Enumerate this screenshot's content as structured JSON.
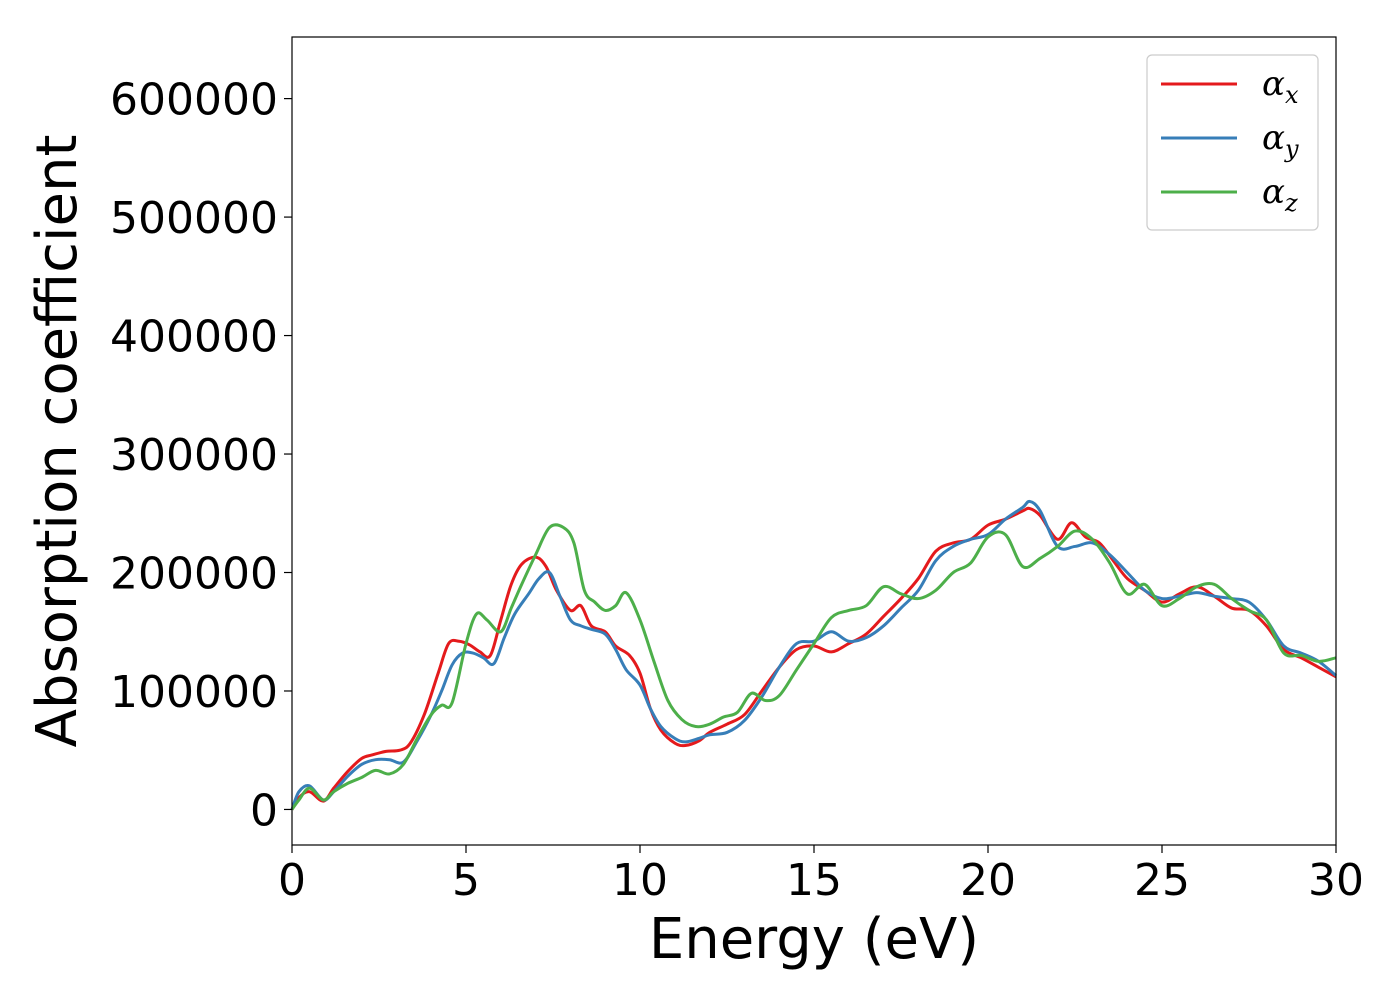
{
  "chart_data": {
    "type": "line",
    "title": "",
    "xlabel": "Energy (eV)",
    "ylabel": "Absorption coefficient",
    "xlim": [
      0,
      30
    ],
    "ylim": [
      -30000,
      652000
    ],
    "xticks": [
      0,
      5,
      10,
      15,
      20,
      25,
      30
    ],
    "xtick_labels": [
      "0",
      "5",
      "10",
      "15",
      "20",
      "25",
      "30"
    ],
    "yticks": [
      0,
      100000,
      200000,
      300000,
      400000,
      500000,
      600000
    ],
    "ytick_labels": [
      "0",
      "100000",
      "200000",
      "300000",
      "400000",
      "500000",
      "600000"
    ],
    "grid": false,
    "legend_position": "top-right",
    "series": [
      {
        "name": "αx",
        "name_base": "α",
        "name_sub": "x",
        "color": "#e41a1c",
        "x": [
          0,
          0.2,
          0.5,
          0.9,
          1.2,
          1.6,
          2.0,
          2.3,
          2.7,
          3.1,
          3.4,
          3.8,
          4.2,
          4.5,
          4.8,
          5.1,
          5.4,
          5.7,
          6.0,
          6.3,
          6.6,
          7.0,
          7.3,
          7.6,
          8.0,
          8.3,
          8.6,
          9.0,
          9.3,
          9.7,
          10.0,
          10.3,
          10.6,
          11.0,
          11.3,
          11.7,
          12.0,
          12.5,
          13.0,
          13.5,
          14.0,
          14.5,
          15.0,
          15.5,
          16.0,
          16.5,
          17.0,
          17.5,
          18.0,
          18.5,
          19.0,
          19.5,
          20.0,
          20.5,
          21.0,
          21.2,
          21.5,
          22.0,
          22.4,
          22.8,
          23.2,
          23.6,
          24.0,
          24.5,
          25.0,
          25.5,
          26.0,
          26.5,
          27.0,
          27.5,
          28.0,
          28.5,
          29.0,
          29.5,
          30.0
        ],
        "values": [
          0,
          10000,
          15000,
          7000,
          18000,
          32000,
          43000,
          46000,
          49000,
          50000,
          56000,
          80000,
          115000,
          140000,
          142000,
          139000,
          133000,
          130000,
          160000,
          190000,
          207000,
          213000,
          205000,
          185000,
          168000,
          172000,
          155000,
          150000,
          138000,
          130000,
          115000,
          85000,
          67000,
          56000,
          54000,
          58000,
          65000,
          72000,
          80000,
          100000,
          120000,
          135000,
          138000,
          133000,
          140000,
          148000,
          163000,
          178000,
          195000,
          218000,
          225000,
          228000,
          240000,
          245000,
          252000,
          254000,
          248000,
          228000,
          242000,
          230000,
          225000,
          210000,
          195000,
          185000,
          175000,
          182000,
          188000,
          180000,
          170000,
          168000,
          155000,
          135000,
          128000,
          120000,
          112000
        ]
      },
      {
        "name": "αy",
        "name_base": "α",
        "name_sub": "y",
        "color": "#377eb8",
        "x": [
          0,
          0.2,
          0.5,
          0.9,
          1.2,
          1.6,
          2.0,
          2.4,
          2.8,
          3.2,
          3.6,
          4.0,
          4.3,
          4.6,
          4.9,
          5.2,
          5.5,
          5.8,
          6.1,
          6.4,
          6.8,
          7.1,
          7.4,
          7.7,
          8.0,
          8.3,
          8.6,
          9.0,
          9.3,
          9.6,
          10.0,
          10.3,
          10.6,
          11.0,
          11.3,
          11.7,
          12.0,
          12.5,
          13.0,
          13.5,
          14.0,
          14.5,
          15.0,
          15.5,
          16.0,
          16.5,
          17.0,
          17.5,
          18.0,
          18.5,
          19.0,
          19.5,
          20.0,
          20.5,
          21.0,
          21.2,
          21.5,
          22.0,
          22.5,
          23.0,
          23.5,
          24.0,
          24.5,
          25.0,
          25.5,
          26.0,
          26.5,
          27.0,
          27.5,
          28.0,
          28.5,
          29.0,
          29.5,
          30.0
        ],
        "values": [
          0,
          15000,
          20000,
          8000,
          15000,
          28000,
          38000,
          42000,
          42000,
          40000,
          58000,
          80000,
          100000,
          122000,
          132000,
          132000,
          128000,
          123000,
          145000,
          165000,
          182000,
          195000,
          200000,
          180000,
          160000,
          155000,
          152000,
          148000,
          135000,
          118000,
          105000,
          85000,
          70000,
          60000,
          57000,
          60000,
          63000,
          65000,
          75000,
          95000,
          120000,
          140000,
          142000,
          150000,
          142000,
          145000,
          155000,
          170000,
          185000,
          210000,
          222000,
          228000,
          232000,
          245000,
          255000,
          260000,
          252000,
          222000,
          222000,
          225000,
          215000,
          200000,
          185000,
          178000,
          180000,
          183000,
          180000,
          178000,
          175000,
          160000,
          138000,
          132000,
          125000,
          113000
        ]
      },
      {
        "name": "αz",
        "name_base": "α",
        "name_sub": "z",
        "color": "#4daf4a",
        "x": [
          0,
          0.2,
          0.5,
          0.9,
          1.2,
          1.6,
          2.0,
          2.4,
          2.8,
          3.2,
          3.6,
          4.0,
          4.3,
          4.6,
          5.0,
          5.3,
          5.6,
          6.0,
          6.3,
          6.6,
          7.0,
          7.4,
          7.8,
          8.1,
          8.4,
          8.7,
          9.0,
          9.3,
          9.6,
          10.0,
          10.4,
          10.8,
          11.2,
          11.6,
          12.0,
          12.4,
          12.8,
          13.2,
          13.6,
          14.0,
          14.5,
          15.0,
          15.5,
          16.0,
          16.5,
          17.0,
          17.5,
          18.0,
          18.5,
          19.0,
          19.5,
          20.0,
          20.5,
          21.0,
          21.5,
          22.0,
          22.5,
          23.0,
          23.5,
          24.0,
          24.5,
          25.0,
          25.5,
          26.0,
          26.5,
          27.0,
          27.5,
          28.0,
          28.5,
          29.0,
          29.5,
          30.0
        ],
        "values": [
          0,
          8000,
          18000,
          8000,
          15000,
          22000,
          27000,
          33000,
          30000,
          38000,
          60000,
          80000,
          88000,
          90000,
          140000,
          165000,
          160000,
          150000,
          170000,
          190000,
          215000,
          238000,
          238000,
          225000,
          185000,
          175000,
          168000,
          172000,
          183000,
          160000,
          125000,
          92000,
          76000,
          70000,
          72000,
          78000,
          82000,
          98000,
          92000,
          96000,
          118000,
          140000,
          162000,
          168000,
          172000,
          188000,
          182000,
          178000,
          185000,
          200000,
          208000,
          230000,
          232000,
          205000,
          212000,
          222000,
          235000,
          228000,
          208000,
          182000,
          190000,
          172000,
          178000,
          188000,
          190000,
          178000,
          168000,
          160000,
          132000,
          130000,
          125000,
          128000
        ]
      }
    ]
  }
}
